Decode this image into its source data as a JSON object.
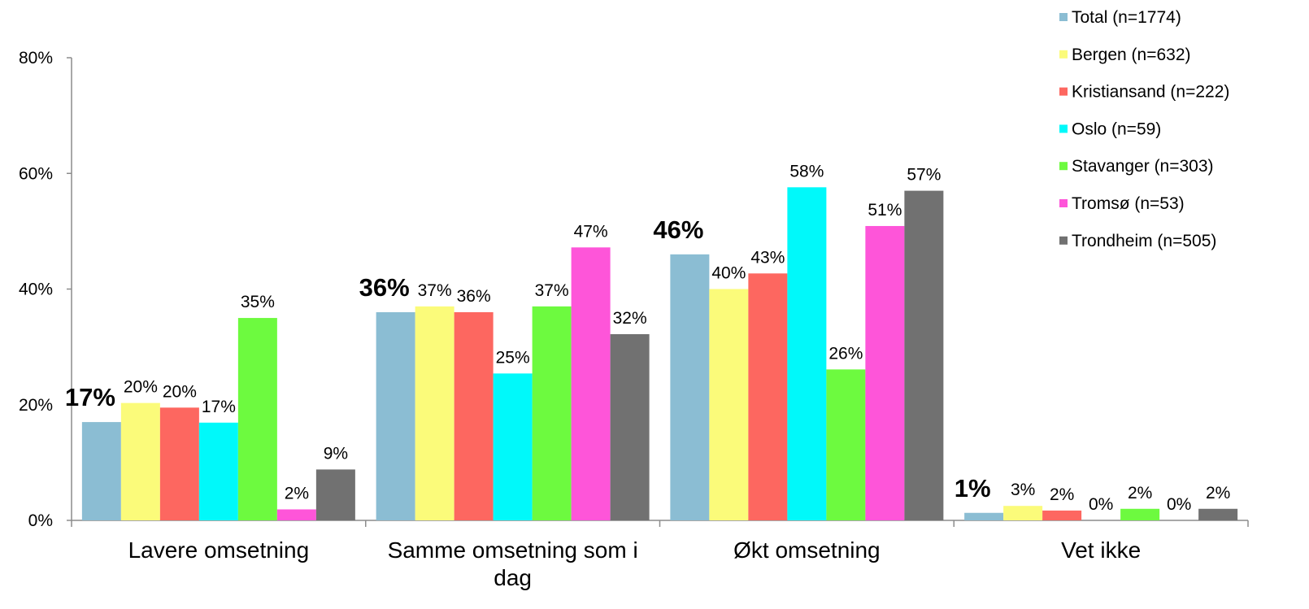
{
  "chart_data": {
    "type": "bar",
    "title": "",
    "xlabel": "",
    "ylabel": "",
    "ylim": [
      0,
      80
    ],
    "y_ticks": [
      "0%",
      "20%",
      "40%",
      "60%",
      "80%"
    ],
    "y_tick_values": [
      0,
      20,
      40,
      60,
      80
    ],
    "categories": [
      [
        "Lavere omsetning"
      ],
      [
        "Samme omsetning som i",
        "dag"
      ],
      [
        "Økt omsetning"
      ],
      [
        "Vet ikke"
      ]
    ],
    "grid": false,
    "legend_position": "top-right",
    "series": [
      {
        "name": "Total (n=1774)",
        "color": "#8bbdd3",
        "values": [
          17,
          36,
          46,
          1.3
        ],
        "labels": [
          "17%",
          "36%",
          "46%",
          "1%"
        ],
        "bold_labels": true
      },
      {
        "name": "Bergen (n=632)",
        "color": "#fbfb7a",
        "values": [
          20.3,
          37,
          40,
          2.5
        ],
        "labels": [
          "20%",
          "37%",
          "40%",
          "3%"
        ]
      },
      {
        "name": "Kristiansand (n=222)",
        "color": "#fd6760",
        "values": [
          19.5,
          36,
          42.7,
          1.7
        ],
        "labels": [
          "20%",
          "36%",
          "43%",
          "2%"
        ]
      },
      {
        "name": "Oslo (n=59)",
        "color": "#00f9fa",
        "values": [
          16.9,
          25.4,
          57.6,
          0
        ],
        "labels": [
          "17%",
          "25%",
          "58%",
          "0%"
        ]
      },
      {
        "name": "Stavanger (n=303)",
        "color": "#6dfa3f",
        "values": [
          35,
          37,
          26.1,
          2
        ],
        "labels": [
          "35%",
          "37%",
          "26%",
          "2%"
        ]
      },
      {
        "name": "Tromsø (n=53)",
        "color": "#fe55d9",
        "values": [
          1.9,
          47.2,
          50.9,
          0
        ],
        "labels": [
          "2%",
          "47%",
          "51%",
          "0%"
        ]
      },
      {
        "name": "Trondheim (n=505)",
        "color": "#717171",
        "values": [
          8.8,
          32.2,
          57,
          2
        ],
        "labels": [
          "9%",
          "32%",
          "57%",
          "2%"
        ]
      }
    ]
  }
}
